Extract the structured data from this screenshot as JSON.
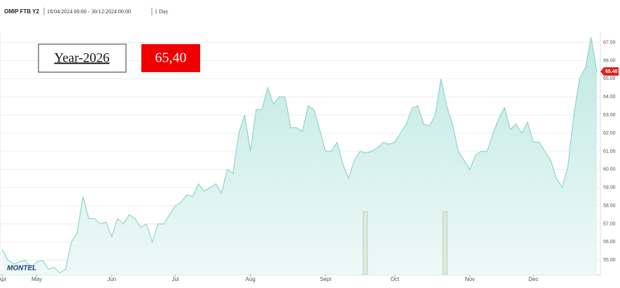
{
  "header": {
    "instrument": "OMIP FTB Y2",
    "range": "18/04/2024 00:00 - 30/12/2024 00:00",
    "interval": "1 Day"
  },
  "logo": "MONTEL",
  "chart_data": {
    "type": "area",
    "label": "Year-2026",
    "current": {
      "value": 65.4,
      "label": "65,40",
      "axis_label": "65.40"
    },
    "color": "#8fd6cc",
    "ylim": [
      54.2,
      67.6
    ],
    "yticks": [
      {
        "value": 55,
        "label": "55.00"
      },
      {
        "value": 56,
        "label": "56.00"
      },
      {
        "value": 57,
        "label": "57.00"
      },
      {
        "value": 58,
        "label": "58.00"
      },
      {
        "value": 59,
        "label": "59.00"
      },
      {
        "value": 60,
        "label": "60.00"
      },
      {
        "value": 61,
        "label": "61.00"
      },
      {
        "value": 62,
        "label": "62.00"
      },
      {
        "value": 63,
        "label": "63.00"
      },
      {
        "value": 64,
        "label": "64.00"
      },
      {
        "value": 65,
        "label": "65.00"
      },
      {
        "value": 66,
        "label": "66.00"
      },
      {
        "value": 67,
        "label": "67.00"
      }
    ],
    "grid": true,
    "categories": [
      "Apr",
      null,
      null,
      null,
      null,
      null,
      "May",
      null,
      null,
      null,
      null,
      null,
      null,
      null,
      null,
      null,
      null,
      null,
      null,
      "Jun",
      null,
      null,
      null,
      null,
      null,
      null,
      null,
      null,
      null,
      null,
      "Jul",
      null,
      null,
      null,
      null,
      null,
      null,
      null,
      null,
      null,
      null,
      null,
      null,
      "Aug",
      null,
      null,
      null,
      null,
      null,
      null,
      null,
      null,
      null,
      null,
      null,
      null,
      "Sept",
      null,
      null,
      null,
      null,
      null,
      null,
      null,
      null,
      null,
      null,
      null,
      "Oct",
      null,
      null,
      null,
      null,
      null,
      null,
      null,
      null,
      null,
      null,
      null,
      null,
      "Nov",
      null,
      null,
      null,
      null,
      null,
      null,
      null,
      null,
      null,
      null,
      "Dec",
      null,
      null,
      null,
      null,
      null,
      null,
      null,
      null,
      null,
      null,
      null
    ],
    "values": [
      55.6,
      55.0,
      54.8,
      54.9,
      55.0,
      54.6,
      54.9,
      55.0,
      54.5,
      54.6,
      54.3,
      54.5,
      56.0,
      56.5,
      58.5,
      57.3,
      57.3,
      57.0,
      57.1,
      56.3,
      57.3,
      57.0,
      57.5,
      57.3,
      56.8,
      57.0,
      56.0,
      57.0,
      57.0,
      57.5,
      58.0,
      58.2,
      58.6,
      58.5,
      59.2,
      58.8,
      59.0,
      59.2,
      58.7,
      60.0,
      59.8,
      62.0,
      63.0,
      61.0,
      63.3,
      63.3,
      64.5,
      63.6,
      64.0,
      64.0,
      62.3,
      62.3,
      62.1,
      63.5,
      63.3,
      62.2,
      61.0,
      61.0,
      61.5,
      60.3,
      59.5,
      60.5,
      61.0,
      60.9,
      61.0,
      61.2,
      61.5,
      61.4,
      61.5,
      62.0,
      62.5,
      63.4,
      63.5,
      62.5,
      62.4,
      63.0,
      65.0,
      63.5,
      62.5,
      61.0,
      60.5,
      60.0,
      60.8,
      61.0,
      61.0,
      62.0,
      62.8,
      63.4,
      62.2,
      62.5,
      62.0,
      62.6,
      61.5,
      61.5,
      61.0,
      60.5,
      59.5,
      59.0,
      60.2,
      63.0,
      65.0,
      65.6,
      67.3,
      65.4
    ]
  }
}
